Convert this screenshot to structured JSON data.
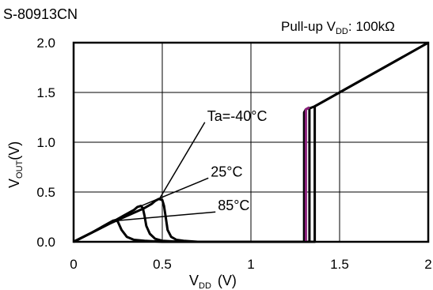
{
  "chart_data": {
    "type": "line",
    "title": "S-80913CN",
    "note_prefix": "Pull-up V",
    "note_sub": "DD",
    "note_suffix": ": 100kΩ",
    "xlabel_main": "V",
    "xlabel_sub": "DD",
    "xlabel_unit": "(V)",
    "ylabel_main": "V",
    "ylabel_sub": "OUT",
    "ylabel_unit": "(V)",
    "xlim": [
      0,
      2
    ],
    "ylim": [
      0,
      2
    ],
    "grid": true,
    "x_ticks": [
      {
        "v": 0,
        "label": "0"
      },
      {
        "v": 0.5,
        "label": "0.5"
      },
      {
        "v": 1,
        "label": "1"
      },
      {
        "v": 1.5,
        "label": "1.5"
      },
      {
        "v": 2,
        "label": "2"
      }
    ],
    "y_ticks": [
      {
        "v": 0,
        "label": "0.0"
      },
      {
        "v": 0.5,
        "label": "0.5"
      },
      {
        "v": 1.0,
        "label": "1.0"
      },
      {
        "v": 1.5,
        "label": "1.5"
      },
      {
        "v": 2.0,
        "label": "2.0"
      }
    ],
    "series": [
      {
        "name": "Ta=-40°C",
        "color": "#000000",
        "points": [
          [
            0,
            0
          ],
          [
            0.1,
            0.09
          ],
          [
            0.2,
            0.18
          ],
          [
            0.3,
            0.26
          ],
          [
            0.4,
            0.34
          ],
          [
            0.44,
            0.38
          ],
          [
            0.46,
            0.41
          ],
          [
            0.48,
            0.43
          ],
          [
            0.5,
            0.42
          ],
          [
            0.51,
            0.36
          ],
          [
            0.52,
            0.24
          ],
          [
            0.53,
            0.12
          ],
          [
            0.55,
            0.05
          ],
          [
            0.58,
            0.02
          ],
          [
            0.62,
            0.01
          ],
          [
            0.7,
            0
          ],
          [
            1.33,
            0
          ],
          [
            1.33,
            1.34
          ],
          [
            1.36,
            1.36
          ],
          [
            2,
            2
          ]
        ]
      },
      {
        "name": "25°C",
        "color": "#000000",
        "points": [
          [
            0,
            0
          ],
          [
            0.1,
            0.09
          ],
          [
            0.2,
            0.18
          ],
          [
            0.28,
            0.26
          ],
          [
            0.34,
            0.32
          ],
          [
            0.36,
            0.35
          ],
          [
            0.38,
            0.36
          ],
          [
            0.39,
            0.34
          ],
          [
            0.4,
            0.26
          ],
          [
            0.41,
            0.16
          ],
          [
            0.43,
            0.08
          ],
          [
            0.46,
            0.03
          ],
          [
            0.5,
            0.01
          ],
          [
            0.6,
            0
          ],
          [
            1.36,
            0
          ],
          [
            1.36,
            1.36
          ],
          [
            2,
            2
          ]
        ]
      },
      {
        "name": "85°C",
        "color": "#000000",
        "points": [
          [
            0,
            0
          ],
          [
            0.1,
            0.09
          ],
          [
            0.18,
            0.17
          ],
          [
            0.22,
            0.21
          ],
          [
            0.24,
            0.22
          ],
          [
            0.25,
            0.2
          ],
          [
            0.27,
            0.12
          ],
          [
            0.3,
            0.05
          ],
          [
            0.34,
            0.02
          ],
          [
            0.4,
            0.01
          ],
          [
            0.5,
            0
          ],
          [
            1.3,
            0
          ],
          [
            1.3,
            1.3
          ],
          [
            1.31,
            1.33
          ],
          [
            1.33,
            1.35
          ]
        ]
      }
    ],
    "highlight": {
      "color": "#8a1f7a",
      "points": [
        [
          1.31,
          0
        ],
        [
          1.31,
          1.33
        ],
        [
          1.33,
          1.35
        ]
      ]
    },
    "annotations": [
      {
        "label": "Ta=-40°C",
        "line_from": [
          0.48,
          0.42
        ],
        "line_to": [
          0.74,
          1.2
        ]
      },
      {
        "label": "25°C",
        "line_from": [
          0.38,
          0.36
        ],
        "line_to": [
          0.76,
          0.64
        ]
      },
      {
        "label": "85°C",
        "line_from": [
          0.23,
          0.21
        ],
        "line_to": [
          0.8,
          0.3
        ]
      }
    ]
  }
}
